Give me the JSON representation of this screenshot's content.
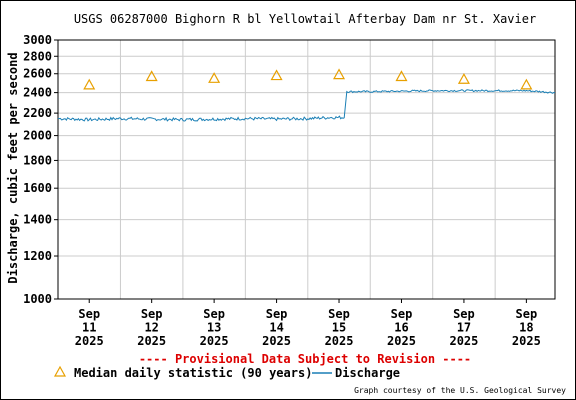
{
  "chart_data": {
    "type": "line",
    "title": "USGS 06287000 Bighorn R bl Yellowtail Afterbay Dam nr St. Xavier",
    "ylabel": "Discharge, cubic feet per second",
    "xlabel": "",
    "y_scale": "log",
    "ylim": [
      1000,
      3000
    ],
    "y_ticks": [
      1000,
      1200,
      1400,
      1600,
      1800,
      2000,
      2200,
      2400,
      2600,
      2800,
      3000
    ],
    "xlim": [
      "2025-09-11T00:00",
      "2025-09-18T23:00"
    ],
    "x_ticks": [
      {
        "x": "2025-09-11T12:00",
        "label": [
          "Sep",
          "11",
          "2025"
        ]
      },
      {
        "x": "2025-09-12T12:00",
        "label": [
          "Sep",
          "12",
          "2025"
        ]
      },
      {
        "x": "2025-09-13T12:00",
        "label": [
          "Sep",
          "13",
          "2025"
        ]
      },
      {
        "x": "2025-09-14T12:00",
        "label": [
          "Sep",
          "14",
          "2025"
        ]
      },
      {
        "x": "2025-09-15T12:00",
        "label": [
          "Sep",
          "15",
          "2025"
        ]
      },
      {
        "x": "2025-09-16T12:00",
        "label": [
          "Sep",
          "16",
          "2025"
        ]
      },
      {
        "x": "2025-09-17T12:00",
        "label": [
          "Sep",
          "17",
          "2025"
        ]
      },
      {
        "x": "2025-09-18T12:00",
        "label": [
          "Sep",
          "18",
          "2025"
        ]
      }
    ],
    "grid": true,
    "series": [
      {
        "name": "Discharge",
        "type": "line",
        "color": "#1a7fb5",
        "points": [
          {
            "x": "2025-09-11T00:00",
            "y": 2150
          },
          {
            "x": "2025-09-11T12:00",
            "y": 2140
          },
          {
            "x": "2025-09-12T00:00",
            "y": 2150
          },
          {
            "x": "2025-09-12T12:00",
            "y": 2145
          },
          {
            "x": "2025-09-13T00:00",
            "y": 2140
          },
          {
            "x": "2025-09-13T12:00",
            "y": 2145
          },
          {
            "x": "2025-09-14T00:00",
            "y": 2150
          },
          {
            "x": "2025-09-14T12:00",
            "y": 2145
          },
          {
            "x": "2025-09-15T00:00",
            "y": 2150
          },
          {
            "x": "2025-09-15T09:00",
            "y": 2160
          },
          {
            "x": "2025-09-15T14:00",
            "y": 2160
          },
          {
            "x": "2025-09-15T15:00",
            "y": 2410
          },
          {
            "x": "2025-09-16T00:00",
            "y": 2410
          },
          {
            "x": "2025-09-16T12:00",
            "y": 2415
          },
          {
            "x": "2025-09-17T00:00",
            "y": 2420
          },
          {
            "x": "2025-09-17T12:00",
            "y": 2420
          },
          {
            "x": "2025-09-18T00:00",
            "y": 2420
          },
          {
            "x": "2025-09-18T12:00",
            "y": 2420
          },
          {
            "x": "2025-09-18T23:00",
            "y": 2400
          }
        ]
      },
      {
        "name": "Median daily statistic (90 years)",
        "type": "scatter",
        "marker": "triangle",
        "color": "#e8a000",
        "points": [
          {
            "x": "2025-09-11T12:00",
            "y": 2480
          },
          {
            "x": "2025-09-12T12:00",
            "y": 2570
          },
          {
            "x": "2025-09-13T12:00",
            "y": 2550
          },
          {
            "x": "2025-09-14T12:00",
            "y": 2580
          },
          {
            "x": "2025-09-15T12:00",
            "y": 2590
          },
          {
            "x": "2025-09-16T12:00",
            "y": 2570
          },
          {
            "x": "2025-09-17T12:00",
            "y": 2540
          },
          {
            "x": "2025-09-18T12:00",
            "y": 2480
          }
        ]
      }
    ],
    "provisional_note": "---- Provisional Data Subject to Revision ----",
    "legend": {
      "median_label": "Median daily statistic (90 years)",
      "discharge_label": "Discharge"
    },
    "credit": "Graph courtesy of the U.S. Geological Survey"
  },
  "colors": {
    "grid": "#cccccc",
    "axis": "#000000",
    "discharge": "#1a7fb5",
    "median": "#e8a000",
    "provisional": "#dd0000"
  }
}
